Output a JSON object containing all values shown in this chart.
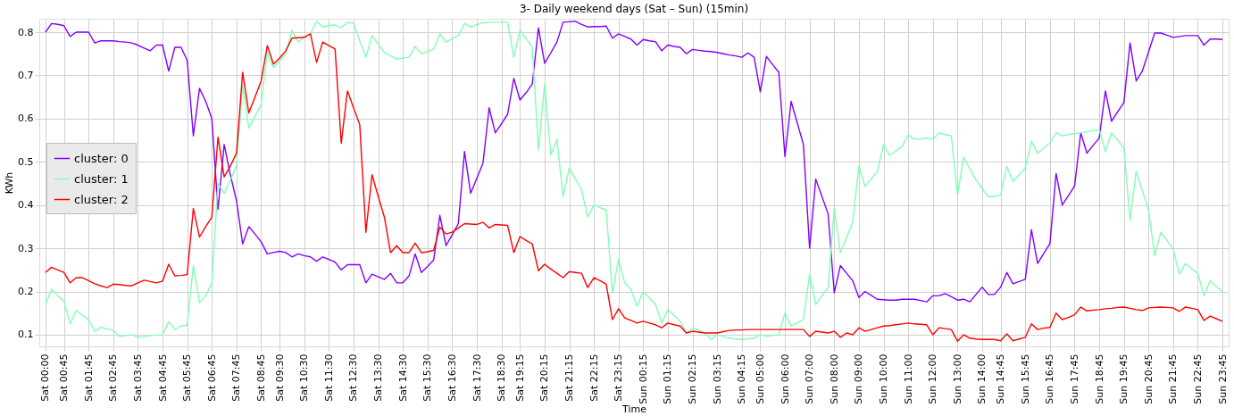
{
  "chart_data": {
    "type": "line",
    "title": "3- Daily weekend days (Sat – Sun) (15min)",
    "xlabel": "Time",
    "ylabel": "KWh",
    "ylim": [
      0.073,
      0.831
    ],
    "yticks": [
      0.1,
      0.2,
      0.3,
      0.4,
      0.5,
      0.6,
      0.7,
      0.8
    ],
    "grid": true,
    "legend": "left",
    "marker": "none",
    "line_style": "solid",
    "categories": [
      "Sat 00:00",
      null,
      null,
      "Sat 00:45",
      null,
      null,
      null,
      "Sat 01:45",
      null,
      null,
      null,
      "Sat 02:45",
      null,
      null,
      null,
      "Sat 03:45",
      null,
      null,
      null,
      "Sat 04:45",
      null,
      null,
      null,
      "Sat 05:45",
      null,
      null,
      null,
      "Sat 06:45",
      null,
      null,
      null,
      "Sat 07:45",
      null,
      null,
      null,
      "Sat 08:45",
      null,
      null,
      "Sat 09:30",
      null,
      null,
      null,
      "Sat 10:30",
      null,
      null,
      null,
      "Sat 11:30",
      null,
      null,
      null,
      "Sat 12:30",
      null,
      null,
      null,
      "Sat 13:30",
      null,
      null,
      null,
      "Sat 14:30",
      null,
      null,
      null,
      "Sat 15:30",
      null,
      null,
      null,
      "Sat 16:30",
      null,
      null,
      null,
      "Sat 17:30",
      null,
      null,
      null,
      "Sat 18:30",
      null,
      null,
      "Sat 19:15",
      null,
      null,
      null,
      "Sat 20:15",
      null,
      null,
      null,
      "Sat 21:15",
      null,
      null,
      null,
      "Sat 22:15",
      null,
      null,
      null,
      "Sat 23:15",
      null,
      null,
      null,
      "Sun 00:15",
      null,
      null,
      null,
      "Sun 01:15",
      null,
      null,
      null,
      "Sun 02:15",
      null,
      null,
      null,
      "Sun 03:15",
      null,
      null,
      null,
      "Sun 04:15",
      null,
      null,
      "Sun 05:00",
      null,
      null,
      null,
      "Sun 06:00",
      null,
      null,
      null,
      "Sun 07:00",
      null,
      null,
      null,
      "Sun 08:00",
      null,
      null,
      null,
      "Sun 09:00",
      null,
      null,
      null,
      "Sun 10:00",
      null,
      null,
      null,
      "Sun 11:00",
      null,
      null,
      null,
      "Sun 12:00",
      null,
      null,
      null,
      "Sun 13:00",
      null,
      null,
      null,
      "Sun 14:00",
      null,
      null,
      "Sun 14:45",
      null,
      null,
      null,
      "Sun 15:45",
      null,
      null,
      null,
      "Sun 16:45",
      null,
      null,
      null,
      "Sun 17:45",
      null,
      null,
      null,
      "Sun 18:45",
      null,
      null,
      null,
      "Sun 19:45",
      null,
      null,
      null,
      "Sun 20:45",
      null,
      null,
      null,
      "Sun 21:45",
      null,
      null,
      null,
      "Sun 22:45",
      null,
      null,
      null,
      "Sun 23:45"
    ],
    "series": [
      {
        "name": "cluster: 0",
        "color": "#8000ff",
        "values": [
          0.8,
          0.82,
          0.818,
          0.815,
          0.79,
          0.8,
          0.8,
          0.8,
          0.775,
          0.78,
          0.78,
          0.78,
          0.778,
          0.777,
          0.775,
          0.77,
          0.763,
          0.757,
          0.77,
          0.77,
          0.71,
          0.765,
          0.765,
          0.735,
          0.56,
          0.67,
          0.64,
          0.6,
          0.39,
          0.54,
          0.47,
          0.41,
          0.31,
          0.35,
          0.333,
          0.315,
          0.287,
          0.29,
          0.293,
          0.29,
          0.28,
          0.287,
          0.283,
          0.28,
          0.27,
          0.28,
          0.274,
          0.268,
          0.25,
          0.262,
          0.262,
          0.262,
          0.22,
          0.24,
          0.234,
          0.228,
          0.242,
          0.22,
          0.22,
          0.236,
          0.287,
          0.244,
          0.258,
          0.273,
          0.376,
          0.306,
          0.331,
          0.357,
          0.524,
          0.427,
          0.462,
          0.497,
          0.625,
          0.567,
          0.588,
          0.61,
          0.693,
          0.643,
          0.66,
          0.68,
          0.81,
          0.728,
          0.752,
          0.777,
          0.823,
          0.824,
          0.825,
          0.818,
          0.812,
          0.813,
          0.813,
          0.814,
          0.786,
          0.796,
          0.79,
          0.784,
          0.77,
          0.783,
          0.78,
          0.778,
          0.757,
          0.77,
          0.767,
          0.765,
          0.75,
          0.76,
          0.758,
          0.756,
          0.755,
          0.753,
          0.75,
          0.747,
          0.745,
          0.742,
          0.752,
          0.742,
          0.662,
          0.744,
          0.725,
          0.707,
          0.512,
          0.64,
          0.59,
          0.54,
          0.3,
          0.46,
          0.42,
          0.38,
          0.197,
          0.26,
          0.242,
          0.225,
          0.186,
          0.2,
          0.191,
          0.182,
          0.181,
          0.18,
          0.18,
          0.182,
          0.182,
          0.182,
          0.179,
          0.176,
          0.19,
          0.19,
          0.195,
          0.188,
          0.18,
          0.182,
          0.176,
          0.193,
          0.21,
          0.193,
          0.193,
          0.21,
          0.244,
          0.218,
          0.223,
          0.228,
          0.343,
          0.265,
          0.288,
          0.311,
          0.473,
          0.4,
          0.422,
          0.444,
          0.567,
          0.52,
          0.538,
          0.555,
          0.664,
          0.594,
          0.616,
          0.637,
          0.775,
          0.687,
          0.71,
          0.754,
          0.798,
          0.798,
          0.793,
          0.788,
          0.79,
          0.792,
          0.792,
          0.792,
          0.77,
          0.784,
          0.784,
          0.783
        ]
      },
      {
        "name": "cluster: 1",
        "color": "#80ffb4",
        "values": [
          0.17,
          0.205,
          0.19,
          0.178,
          0.125,
          0.156,
          0.145,
          0.135,
          0.108,
          0.117,
          0.113,
          0.11,
          0.096,
          0.098,
          0.1,
          0.094,
          0.096,
          0.098,
          0.099,
          0.1,
          0.13,
          0.112,
          0.12,
          0.122,
          0.26,
          0.174,
          0.19,
          0.22,
          0.45,
          0.427,
          0.458,
          0.49,
          0.676,
          0.578,
          0.605,
          0.633,
          0.753,
          0.718,
          0.734,
          0.75,
          0.804,
          0.777,
          0.788,
          0.796,
          0.825,
          0.812,
          0.815,
          0.817,
          0.81,
          0.823,
          0.82,
          0.78,
          0.742,
          0.792,
          0.772,
          0.753,
          0.745,
          0.738,
          0.74,
          0.742,
          0.767,
          0.75,
          0.755,
          0.761,
          0.796,
          0.777,
          0.785,
          0.792,
          0.82,
          0.812,
          0.817,
          0.822,
          0.822,
          0.823,
          0.823,
          0.823,
          0.742,
          0.804,
          0.785,
          0.765,
          0.528,
          0.68,
          0.516,
          0.552,
          0.419,
          0.486,
          0.46,
          0.435,
          0.372,
          0.4,
          0.394,
          0.388,
          0.197,
          0.275,
          0.22,
          0.205,
          0.166,
          0.2,
          0.185,
          0.17,
          0.127,
          0.158,
          0.145,
          0.131,
          0.104,
          0.116,
          0.11,
          0.104,
          0.089,
          0.1,
          0.096,
          0.092,
          0.09,
          0.089,
          0.09,
          0.092,
          0.1,
          0.096,
          0.098,
          0.1,
          0.15,
          0.12,
          0.128,
          0.135,
          0.24,
          0.17,
          0.19,
          0.209,
          0.392,
          0.29,
          0.325,
          0.36,
          0.49,
          0.443,
          0.46,
          0.478,
          0.54,
          0.515,
          0.525,
          0.536,
          0.563,
          0.552,
          0.553,
          0.555,
          0.552,
          0.567,
          0.563,
          0.56,
          0.424,
          0.51,
          0.484,
          0.458,
          0.438,
          0.419,
          0.42,
          0.424,
          0.49,
          0.454,
          0.47,
          0.486,
          0.548,
          0.52,
          0.532,
          0.544,
          0.567,
          0.56,
          0.563,
          0.565,
          0.567,
          0.57,
          0.572,
          0.574,
          0.524,
          0.567,
          0.55,
          0.532,
          0.365,
          0.478,
          0.433,
          0.388,
          0.283,
          0.337,
          0.318,
          0.298,
          0.24,
          0.265,
          0.253,
          0.242,
          0.19,
          0.225,
          0.212,
          0.2
        ]
      },
      {
        "name": "cluster: 2",
        "color": "#ff0000",
        "values": [
          0.244,
          0.256,
          0.25,
          0.244,
          0.22,
          0.232,
          0.232,
          0.225,
          0.218,
          0.213,
          0.209,
          0.217,
          0.216,
          0.214,
          0.213,
          0.22,
          0.226,
          0.223,
          0.22,
          0.224,
          0.263,
          0.236,
          0.237,
          0.239,
          0.392,
          0.326,
          0.35,
          0.372,
          0.557,
          0.465,
          0.49,
          0.52,
          0.707,
          0.613,
          0.65,
          0.687,
          0.769,
          0.726,
          0.74,
          0.757,
          0.786,
          0.787,
          0.788,
          0.796,
          0.73,
          0.777,
          0.769,
          0.761,
          0.543,
          0.664,
          0.625,
          0.586,
          0.337,
          0.47,
          0.42,
          0.372,
          0.29,
          0.306,
          0.29,
          0.29,
          0.312,
          0.29,
          0.292,
          0.295,
          0.349,
          0.333,
          0.337,
          0.347,
          0.357,
          0.356,
          0.355,
          0.36,
          0.347,
          0.355,
          0.354,
          0.353,
          0.29,
          0.327,
          0.318,
          0.31,
          0.248,
          0.263,
          0.252,
          0.242,
          0.232,
          0.246,
          0.244,
          0.242,
          0.209,
          0.232,
          0.225,
          0.217,
          0.135,
          0.16,
          0.139,
          0.133,
          0.127,
          0.131,
          0.127,
          0.123,
          0.116,
          0.127,
          0.123,
          0.12,
          0.104,
          0.108,
          0.106,
          0.104,
          0.104,
          0.104,
          0.107,
          0.11,
          0.111,
          0.111,
          0.112,
          0.112,
          0.112,
          0.112,
          0.112,
          0.112,
          0.112,
          0.112,
          0.112,
          0.112,
          0.096,
          0.108,
          0.106,
          0.104,
          0.108,
          0.094,
          0.104,
          0.1,
          0.116,
          0.108,
          0.112,
          0.116,
          0.12,
          0.121,
          0.123,
          0.125,
          0.127,
          0.125,
          0.124,
          0.123,
          0.1,
          0.116,
          0.114,
          0.112,
          0.085,
          0.1,
          0.092,
          0.09,
          0.089,
          0.089,
          0.089,
          0.086,
          0.102,
          0.086,
          0.09,
          0.094,
          0.125,
          0.112,
          0.115,
          0.117,
          0.15,
          0.135,
          0.14,
          0.146,
          0.164,
          0.155,
          0.157,
          0.158,
          0.16,
          0.161,
          0.163,
          0.164,
          0.161,
          0.158,
          0.156,
          0.162,
          0.163,
          0.164,
          0.163,
          0.162,
          0.154,
          0.164,
          0.161,
          0.158,
          0.133,
          0.143,
          0.137,
          0.131
        ]
      }
    ]
  }
}
